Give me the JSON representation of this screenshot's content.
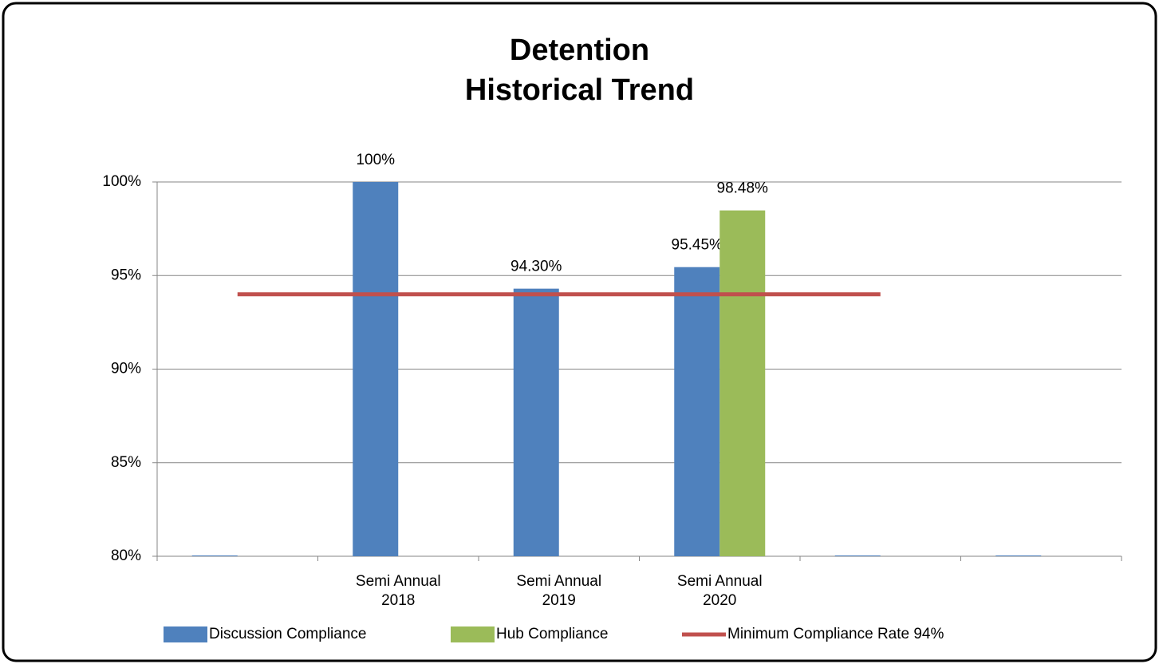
{
  "chart_data": {
    "type": "bar",
    "title": "Detention\nHistorical Trend",
    "categories": [
      null,
      "Semi Annual\n2018",
      "Semi Annual\n2019",
      "Semi Annual\n2020",
      null,
      null
    ],
    "series": [
      {
        "name": "Discussion Compliance",
        "color": "#4f81bd",
        "type": "bar",
        "values": [
          80,
          100,
          94.3,
          95.45,
          80,
          80
        ],
        "value_labels": [
          null,
          "100%",
          "94.30%",
          "95.45%",
          null,
          null
        ]
      },
      {
        "name": "Hub Compliance",
        "color": "#9bbb59",
        "type": "bar",
        "values": [
          null,
          null,
          null,
          98.48,
          null,
          null
        ],
        "value_labels": [
          null,
          null,
          null,
          "98.48%",
          null,
          null
        ]
      },
      {
        "name": "Minimum Compliance Rate 94%",
        "color": "#c0504d",
        "type": "line",
        "values": [
          94,
          94,
          94,
          94,
          94,
          null
        ]
      }
    ],
    "ylim": [
      80,
      100
    ],
    "yticks": [
      {
        "value": 80,
        "label": "80%"
      },
      {
        "value": 85,
        "label": "85%"
      },
      {
        "value": 90,
        "label": "90%"
      },
      {
        "value": 95,
        "label": "95%"
      },
      {
        "value": 100,
        "label": "100%"
      }
    ],
    "grid": true,
    "legend": "bottom"
  }
}
